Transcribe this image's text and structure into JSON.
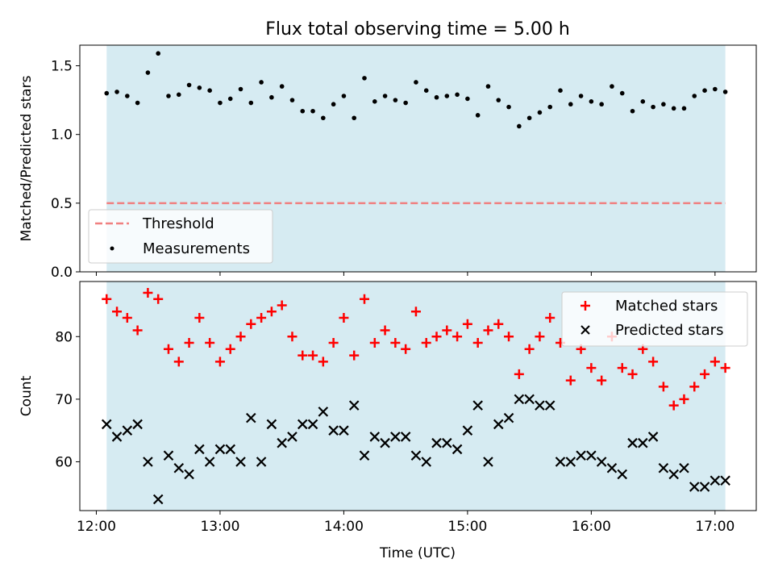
{
  "title": "Flux total observing time = 5.00 h",
  "colors": {
    "shade": "#add8e6",
    "matched": "#ff0000",
    "predicted": "#000000",
    "threshold": "#f08080",
    "measure": "#000000"
  },
  "x_axis": {
    "label": "Time (UTC)",
    "ticks": [
      "12:00",
      "13:00",
      "14:00",
      "15:00",
      "16:00",
      "17:00"
    ]
  },
  "chart_data": [
    {
      "type": "scatter",
      "panel": "top",
      "ylabel": "Matched/Predicted stars",
      "xlim": [
        "11:52",
        "17:20"
      ],
      "ylim": [
        0,
        1.65
      ],
      "yticks": [
        "0.0",
        "0.5",
        "1.0",
        "1.5"
      ],
      "shaded_span": [
        "12:05",
        "17:05"
      ],
      "threshold": {
        "name": "Threshold",
        "value": 0.5,
        "x": [
          "12:05",
          "17:05"
        ]
      },
      "legend": [
        "Threshold",
        "Measurements"
      ],
      "legend_position": "lower-left",
      "series": [
        {
          "name": "Measurements",
          "x": [
            "12:05",
            "12:10",
            "12:15",
            "12:20",
            "12:25",
            "12:30",
            "12:35",
            "12:40",
            "12:45",
            "12:50",
            "12:55",
            "13:00",
            "13:05",
            "13:10",
            "13:15",
            "13:20",
            "13:25",
            "13:30",
            "13:35",
            "13:40",
            "13:45",
            "13:50",
            "13:55",
            "14:00",
            "14:05",
            "14:10",
            "14:15",
            "14:20",
            "14:25",
            "14:30",
            "14:35",
            "14:40",
            "14:45",
            "14:50",
            "14:55",
            "15:00",
            "15:05",
            "15:10",
            "15:15",
            "15:20",
            "15:25",
            "15:30",
            "15:35",
            "15:40",
            "15:45",
            "15:50",
            "15:55",
            "16:00",
            "16:05",
            "16:10",
            "16:15",
            "16:20",
            "16:25",
            "16:30",
            "16:35",
            "16:40",
            "16:45",
            "16:50",
            "16:55",
            "17:00",
            "17:05"
          ],
          "y": [
            1.3,
            1.31,
            1.28,
            1.23,
            1.45,
            1.59,
            1.28,
            1.29,
            1.36,
            1.34,
            1.32,
            1.23,
            1.26,
            1.33,
            1.23,
            1.38,
            1.27,
            1.35,
            1.25,
            1.17,
            1.17,
            1.12,
            1.22,
            1.28,
            1.12,
            1.41,
            1.24,
            1.28,
            1.25,
            1.23,
            1.38,
            1.32,
            1.27,
            1.28,
            1.29,
            1.26,
            1.14,
            1.35,
            1.25,
            1.2,
            1.06,
            1.12,
            1.16,
            1.2,
            1.32,
            1.22,
            1.28,
            1.24,
            1.22,
            1.35,
            1.3,
            1.17,
            1.24,
            1.2,
            1.22,
            1.19,
            1.19,
            1.28,
            1.32,
            1.33,
            1.31
          ]
        }
      ]
    },
    {
      "type": "scatter",
      "panel": "bottom",
      "ylabel": "Count",
      "xlabel": "Time (UTC)",
      "xlim": [
        "11:52",
        "17:20"
      ],
      "ylim": [
        52.2,
        88.8
      ],
      "yticks": [
        "60",
        "70",
        "80"
      ],
      "shaded_span": [
        "12:05",
        "17:05"
      ],
      "legend": [
        "Matched stars",
        "Predicted stars"
      ],
      "legend_position": "top-right",
      "series": [
        {
          "name": "Matched stars",
          "x": [
            "12:05",
            "12:10",
            "12:15",
            "12:20",
            "12:25",
            "12:30",
            "12:35",
            "12:40",
            "12:45",
            "12:50",
            "12:55",
            "13:00",
            "13:05",
            "13:10",
            "13:15",
            "13:20",
            "13:25",
            "13:30",
            "13:35",
            "13:40",
            "13:45",
            "13:50",
            "13:55",
            "14:00",
            "14:05",
            "14:10",
            "14:15",
            "14:20",
            "14:25",
            "14:30",
            "14:35",
            "14:40",
            "14:45",
            "14:50",
            "14:55",
            "15:00",
            "15:05",
            "15:10",
            "15:15",
            "15:20",
            "15:25",
            "15:30",
            "15:35",
            "15:40",
            "15:45",
            "15:50",
            "15:55",
            "16:00",
            "16:05",
            "16:10",
            "16:15",
            "16:20",
            "16:25",
            "16:30",
            "16:35",
            "16:40",
            "16:45",
            "16:50",
            "16:55",
            "17:00",
            "17:05"
          ],
          "y": [
            86,
            84,
            83,
            81,
            87,
            86,
            78,
            76,
            79,
            83,
            79,
            76,
            78,
            80,
            82,
            83,
            84,
            85,
            80,
            77,
            77,
            76,
            79,
            83,
            77,
            86,
            79,
            81,
            79,
            78,
            84,
            79,
            80,
            81,
            80,
            82,
            79,
            81,
            82,
            80,
            74,
            78,
            80,
            83,
            79,
            73,
            78,
            75,
            73,
            80,
            75,
            74,
            78,
            76,
            72,
            69,
            70,
            72,
            74,
            76,
            75
          ]
        },
        {
          "name": "Predicted stars",
          "x": [
            "12:05",
            "12:10",
            "12:15",
            "12:20",
            "12:25",
            "12:30",
            "12:35",
            "12:40",
            "12:45",
            "12:50",
            "12:55",
            "13:00",
            "13:05",
            "13:10",
            "13:15",
            "13:20",
            "13:25",
            "13:30",
            "13:35",
            "13:40",
            "13:45",
            "13:50",
            "13:55",
            "14:00",
            "14:05",
            "14:10",
            "14:15",
            "14:20",
            "14:25",
            "14:30",
            "14:35",
            "14:40",
            "14:45",
            "14:50",
            "14:55",
            "15:00",
            "15:05",
            "15:10",
            "15:15",
            "15:20",
            "15:25",
            "15:30",
            "15:35",
            "15:40",
            "15:45",
            "15:50",
            "15:55",
            "16:00",
            "16:05",
            "16:10",
            "16:15",
            "16:20",
            "16:25",
            "16:30",
            "16:35",
            "16:40",
            "16:45",
            "16:50",
            "16:55",
            "17:00",
            "17:05"
          ],
          "y": [
            66,
            64,
            65,
            66,
            60,
            54,
            61,
            59,
            58,
            62,
            60,
            62,
            62,
            60,
            67,
            60,
            66,
            63,
            64,
            66,
            66,
            68,
            65,
            65,
            69,
            61,
            64,
            63,
            64,
            64,
            61,
            60,
            63,
            63,
            62,
            65,
            69,
            60,
            66,
            67,
            70,
            70,
            69,
            69,
            60,
            60,
            61,
            61,
            60,
            59,
            58,
            63,
            63,
            64,
            59,
            58,
            59,
            56,
            56,
            57,
            57
          ]
        }
      ]
    }
  ]
}
